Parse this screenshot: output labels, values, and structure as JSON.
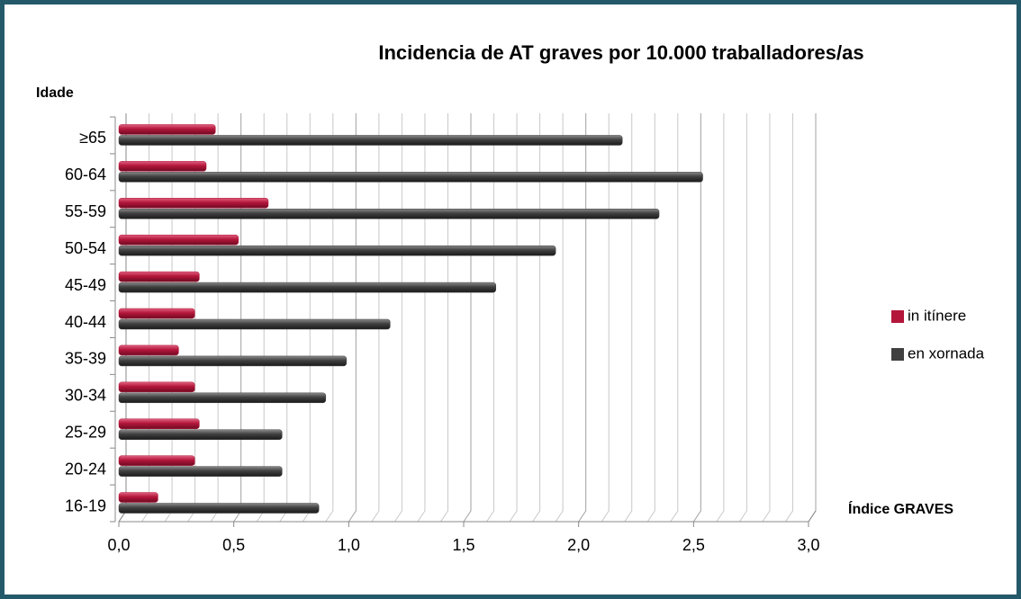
{
  "chart_data": {
    "type": "barh",
    "title": "Incidencia de AT graves por 10.000 traballadores/as",
    "y_label": "Idade",
    "x_label": "Índice GRAVES",
    "categories": [
      "≥65",
      "60-64",
      "55-59",
      "50-54",
      "45-49",
      "40-44",
      "35-39",
      "30-34",
      "25-29",
      "20-24",
      "16-19"
    ],
    "series": [
      {
        "name": "in itínere",
        "color": "#b3163a",
        "values": [
          0.42,
          0.38,
          0.65,
          0.52,
          0.35,
          0.33,
          0.26,
          0.33,
          0.35,
          0.33,
          0.17
        ]
      },
      {
        "name": "en xornada",
        "color": "#404040",
        "values": [
          2.19,
          2.54,
          2.35,
          1.9,
          1.64,
          1.18,
          0.99,
          0.9,
          0.71,
          0.71,
          0.87
        ]
      }
    ],
    "xlim": [
      0,
      3
    ],
    "xticks": [
      {
        "value": 0,
        "label": "0,0"
      },
      {
        "value": 0.5,
        "label": "0,5"
      },
      {
        "value": 1,
        "label": "1,0"
      },
      {
        "value": 1.5,
        "label": "1,5"
      },
      {
        "value": 2,
        "label": "2,0"
      },
      {
        "value": 2.5,
        "label": "2,5"
      },
      {
        "value": 3,
        "label": "3,0"
      }
    ],
    "minor_xticks": [
      0.1,
      0.2,
      0.3,
      0.4,
      0.6,
      0.7,
      0.8,
      0.9,
      1.1,
      1.2,
      1.3,
      1.4,
      1.6,
      1.7,
      1.8,
      1.9,
      2.1,
      2.2,
      2.3,
      2.4,
      2.6,
      2.7,
      2.8,
      2.9
    ],
    "grid": true,
    "legend": "right"
  }
}
